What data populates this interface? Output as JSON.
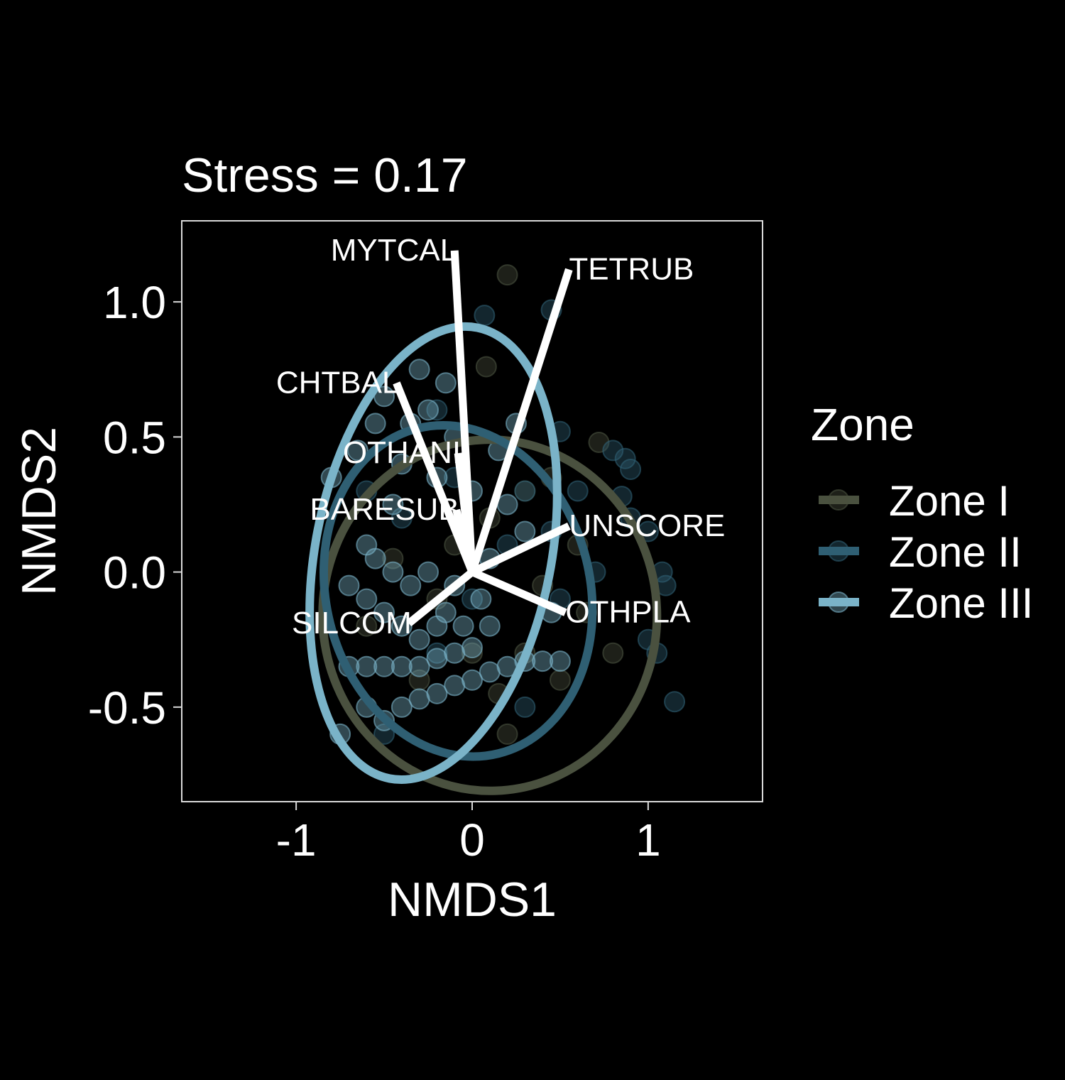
{
  "chart_data": {
    "type": "scatter",
    "title": "Stress = 0.17",
    "xlabel": "NMDS1",
    "ylabel": "NMDS2",
    "xlim": [
      -1.65,
      1.65
    ],
    "ylim": [
      -0.85,
      1.3
    ],
    "x_ticks": [
      -1,
      0,
      1
    ],
    "x_tick_labels": [
      "-1",
      "0",
      "1"
    ],
    "y_ticks": [
      -0.5,
      0.0,
      0.5,
      1.0
    ],
    "y_tick_labels": [
      "-0.5",
      "0.0",
      "0.5",
      "1.0"
    ],
    "grid": false,
    "legend": {
      "title": "Zone",
      "placement": "right",
      "entries": [
        "Zone I",
        "Zone II",
        "Zone III"
      ]
    },
    "series": [
      {
        "name": "Zone I",
        "color": "#4a513f",
        "ellipse": {
          "cx": 0.1,
          "cy": -0.16,
          "rx": 0.95,
          "ry": 0.65,
          "rotation_deg": -2
        },
        "points": [
          [
            0.2,
            1.1
          ],
          [
            0.08,
            0.76
          ],
          [
            0.72,
            0.48
          ],
          [
            0.3,
            0.3
          ],
          [
            0.1,
            0.2
          ],
          [
            -0.1,
            0.1
          ],
          [
            0.4,
            -0.05
          ],
          [
            0.6,
            0.1
          ],
          [
            0.3,
            -0.3
          ],
          [
            0.0,
            -0.3
          ],
          [
            -0.3,
            -0.4
          ],
          [
            0.2,
            -0.6
          ],
          [
            0.5,
            -0.4
          ],
          [
            -0.6,
            -0.2
          ],
          [
            0.8,
            -0.3
          ],
          [
            0.45,
            0.35
          ],
          [
            -0.2,
            -0.1
          ],
          [
            0.15,
            -0.45
          ],
          [
            0.65,
            -0.15
          ],
          [
            -0.45,
            0.05
          ]
        ]
      },
      {
        "name": "Zone II",
        "color": "#2f5f73",
        "ellipse": {
          "cx": -0.08,
          "cy": -0.07,
          "rx": 0.75,
          "ry": 0.62,
          "rotation_deg": -14
        },
        "points": [
          [
            0.07,
            0.95
          ],
          [
            0.45,
            0.97
          ],
          [
            -0.2,
            0.6
          ],
          [
            0.5,
            0.52
          ],
          [
            0.8,
            0.45
          ],
          [
            0.87,
            0.42
          ],
          [
            0.9,
            0.38
          ],
          [
            0.6,
            0.3
          ],
          [
            0.85,
            0.28
          ],
          [
            0.9,
            0.2
          ],
          [
            1.0,
            0.15
          ],
          [
            1.08,
            0.0
          ],
          [
            1.1,
            -0.05
          ],
          [
            1.0,
            -0.25
          ],
          [
            1.05,
            -0.3
          ],
          [
            0.5,
            -0.1
          ],
          [
            0.2,
            0.1
          ],
          [
            0.3,
            0.3
          ],
          [
            -0.4,
            0.2
          ],
          [
            -0.6,
            0.3
          ],
          [
            0.0,
            -0.1
          ],
          [
            -0.2,
            -0.3
          ],
          [
            0.3,
            -0.5
          ],
          [
            -0.5,
            -0.6
          ],
          [
            1.15,
            -0.48
          ],
          [
            0.45,
            0.15
          ],
          [
            -0.1,
            0.35
          ],
          [
            0.7,
            0.0
          ]
        ]
      },
      {
        "name": "Zone III",
        "color": "#7ab3c8",
        "ellipse": {
          "cx": -0.22,
          "cy": 0.07,
          "rx": 0.67,
          "ry": 0.85,
          "rotation_deg": 11
        },
        "points": [
          [
            -0.25,
            0.6
          ],
          [
            -0.1,
            0.5
          ],
          [
            -0.3,
            0.75
          ],
          [
            -0.15,
            0.7
          ],
          [
            -0.5,
            0.65
          ],
          [
            -0.65,
            0.45
          ],
          [
            -0.4,
            0.4
          ],
          [
            -0.2,
            0.35
          ],
          [
            0.0,
            0.3
          ],
          [
            0.2,
            0.25
          ],
          [
            0.3,
            0.15
          ],
          [
            -0.6,
            0.1
          ],
          [
            -0.55,
            0.05
          ],
          [
            -0.45,
            0.0
          ],
          [
            -0.35,
            -0.05
          ],
          [
            -0.25,
            0.0
          ],
          [
            -0.1,
            -0.05
          ],
          [
            0.05,
            -0.1
          ],
          [
            -0.6,
            -0.1
          ],
          [
            -0.5,
            -0.15
          ],
          [
            -0.4,
            -0.2
          ],
          [
            -0.3,
            -0.25
          ],
          [
            -0.2,
            -0.2
          ],
          [
            -0.05,
            -0.2
          ],
          [
            -0.7,
            -0.35
          ],
          [
            -0.6,
            -0.35
          ],
          [
            -0.5,
            -0.35
          ],
          [
            -0.4,
            -0.35
          ],
          [
            -0.3,
            -0.35
          ],
          [
            -0.2,
            -0.32
          ],
          [
            -0.1,
            -0.3
          ],
          [
            0.0,
            -0.28
          ],
          [
            -0.6,
            -0.5
          ],
          [
            -0.5,
            -0.55
          ],
          [
            -0.4,
            -0.5
          ],
          [
            -0.3,
            -0.47
          ],
          [
            -0.2,
            -0.45
          ],
          [
            -0.1,
            -0.42
          ],
          [
            0.0,
            -0.4
          ],
          [
            0.1,
            -0.37
          ],
          [
            0.2,
            -0.35
          ],
          [
            0.3,
            -0.33
          ],
          [
            0.4,
            -0.33
          ],
          [
            0.5,
            -0.33
          ],
          [
            -0.75,
            -0.6
          ],
          [
            -0.8,
            0.35
          ],
          [
            -0.55,
            0.55
          ],
          [
            -0.35,
            0.55
          ],
          [
            0.15,
            0.45
          ],
          [
            0.25,
            0.55
          ],
          [
            -0.15,
            -0.15
          ],
          [
            0.1,
            0.05
          ],
          [
            0.1,
            -0.2
          ],
          [
            -0.45,
            0.25
          ],
          [
            0.45,
            -0.15
          ],
          [
            -0.7,
            -0.05
          ]
        ]
      }
    ],
    "vectors": [
      {
        "label": "MYTCAL",
        "x": -0.1,
        "y": 1.19
      },
      {
        "label": "TETRUB",
        "x": 0.55,
        "y": 1.12
      },
      {
        "label": "CHTBAL",
        "x": -0.43,
        "y": 0.7
      },
      {
        "label": "OTHANI",
        "x": -0.08,
        "y": 0.44
      },
      {
        "label": "BARESUB",
        "x": -0.09,
        "y": 0.23
      },
      {
        "label": "UNSCORE",
        "x": 0.55,
        "y": 0.17
      },
      {
        "label": "OTHPLA",
        "x": 0.53,
        "y": -0.15
      },
      {
        "label": "SILCOM",
        "x": -0.36,
        "y": -0.19
      }
    ]
  }
}
